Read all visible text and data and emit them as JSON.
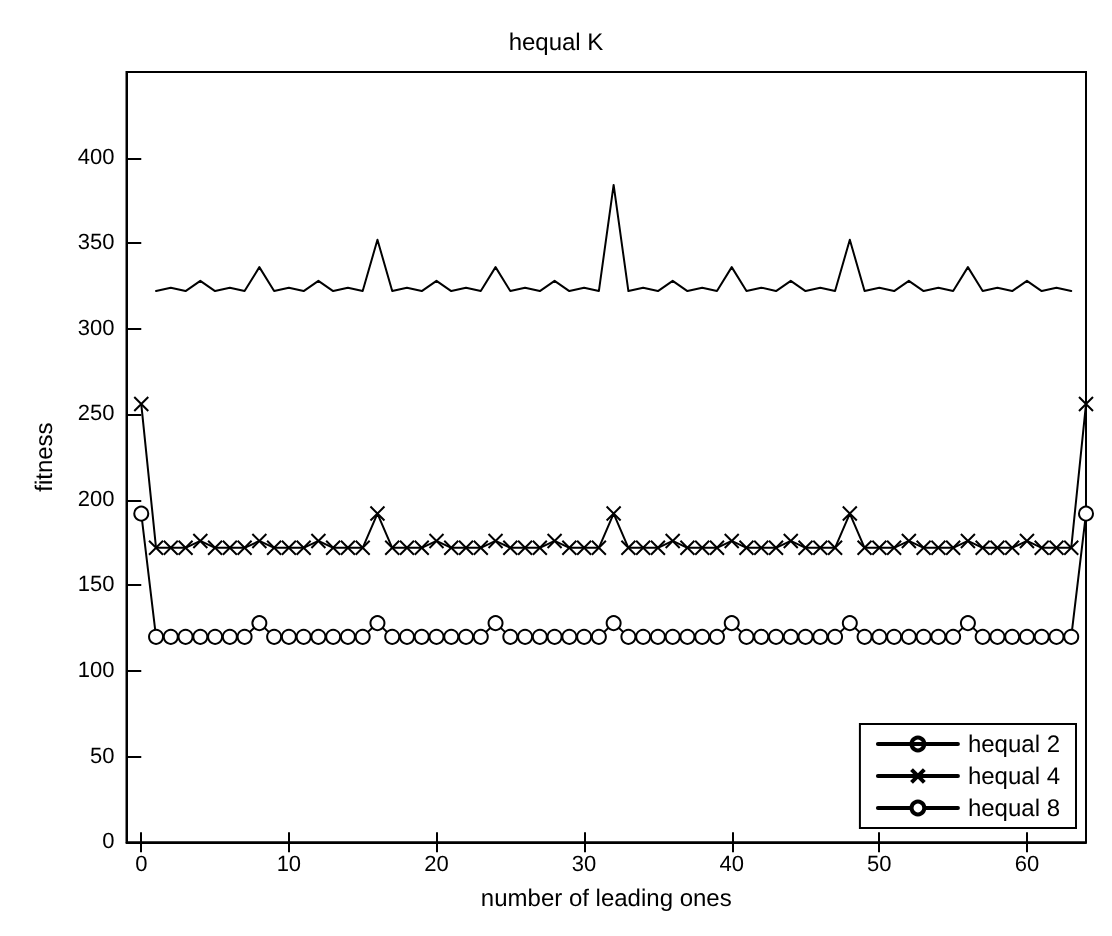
{
  "chart_data": {
    "type": "line",
    "title": "hequal K",
    "xlabel": "number of leading ones",
    "ylabel": "fitness",
    "x": [
      0,
      1,
      2,
      3,
      4,
      5,
      6,
      7,
      8,
      9,
      10,
      11,
      12,
      13,
      14,
      15,
      16,
      17,
      18,
      19,
      20,
      21,
      22,
      23,
      24,
      25,
      26,
      27,
      28,
      29,
      30,
      31,
      32,
      33,
      34,
      35,
      36,
      37,
      38,
      39,
      40,
      41,
      42,
      43,
      44,
      45,
      46,
      47,
      48,
      49,
      50,
      51,
      52,
      53,
      54,
      55,
      56,
      57,
      58,
      59,
      60,
      61,
      62,
      63,
      64
    ],
    "series": [
      {
        "name": "hequal 2",
        "color": "#000000",
        "marker": "none",
        "values": [
          null,
          322,
          324,
          322,
          328,
          322,
          324,
          322,
          336,
          322,
          324,
          322,
          328,
          322,
          324,
          322,
          352,
          322,
          324,
          322,
          328,
          322,
          324,
          322,
          336,
          322,
          324,
          322,
          328,
          322,
          324,
          322,
          384,
          322,
          324,
          322,
          328,
          322,
          324,
          322,
          336,
          322,
          324,
          322,
          328,
          322,
          324,
          322,
          352,
          322,
          324,
          322,
          328,
          322,
          324,
          322,
          336,
          322,
          324,
          322,
          328,
          322,
          324,
          322,
          null
        ]
      },
      {
        "name": "hequal 4",
        "color": "#000000",
        "marker": "cross",
        "values": [
          256,
          172,
          172,
          172,
          176,
          172,
          172,
          172,
          176,
          172,
          172,
          172,
          176,
          172,
          172,
          172,
          192,
          172,
          172,
          172,
          176,
          172,
          172,
          172,
          176,
          172,
          172,
          172,
          176,
          172,
          172,
          172,
          192,
          172,
          172,
          172,
          176,
          172,
          172,
          172,
          176,
          172,
          172,
          172,
          176,
          172,
          172,
          172,
          192,
          172,
          172,
          172,
          176,
          172,
          172,
          172,
          176,
          172,
          172,
          172,
          176,
          172,
          172,
          172,
          256
        ]
      },
      {
        "name": "hequal 8",
        "color": "#000000",
        "marker": "circle",
        "values": [
          192,
          120,
          120,
          120,
          120,
          120,
          120,
          120,
          128,
          120,
          120,
          120,
          120,
          120,
          120,
          120,
          128,
          120,
          120,
          120,
          120,
          120,
          120,
          120,
          128,
          120,
          120,
          120,
          120,
          120,
          120,
          120,
          128,
          120,
          120,
          120,
          120,
          120,
          120,
          120,
          128,
          120,
          120,
          120,
          120,
          120,
          120,
          120,
          128,
          120,
          120,
          120,
          120,
          120,
          120,
          120,
          128,
          120,
          120,
          120,
          120,
          120,
          120,
          120,
          192
        ]
      }
    ],
    "xlim": [
      -1,
      64
    ],
    "xticks": [
      0,
      10,
      20,
      30,
      40,
      50,
      60
    ],
    "ylim": [
      0,
      450
    ],
    "yticks": [
      0,
      50,
      100,
      150,
      200,
      250,
      300,
      350,
      400
    ],
    "grid": false,
    "legend": "bottom right",
    "line_style": "solid"
  }
}
